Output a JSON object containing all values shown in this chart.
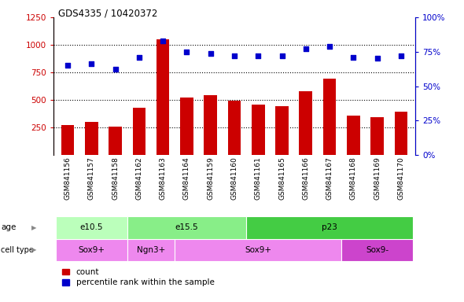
{
  "title": "GDS4335 / 10420372",
  "samples": [
    "GSM841156",
    "GSM841157",
    "GSM841158",
    "GSM841162",
    "GSM841163",
    "GSM841164",
    "GSM841159",
    "GSM841160",
    "GSM841161",
    "GSM841165",
    "GSM841166",
    "GSM841167",
    "GSM841168",
    "GSM841169",
    "GSM841170"
  ],
  "counts": [
    275,
    300,
    255,
    430,
    1050,
    520,
    540,
    495,
    455,
    445,
    580,
    690,
    360,
    340,
    390
  ],
  "percentile": [
    65,
    66,
    62,
    71,
    83,
    75,
    74,
    72,
    72,
    72,
    77,
    79,
    71,
    70,
    72
  ],
  "ylim_left": [
    0,
    1250
  ],
  "ylim_right": [
    0,
    100
  ],
  "yticks_left": [
    250,
    500,
    750,
    1000,
    1250
  ],
  "bar_color": "#cc0000",
  "dot_color": "#0000cc",
  "age_groups": [
    {
      "label": "e10.5",
      "start": 0,
      "end": 3,
      "color": "#bbffbb"
    },
    {
      "label": "e15.5",
      "start": 3,
      "end": 8,
      "color": "#88ee88"
    },
    {
      "label": "p23",
      "start": 8,
      "end": 15,
      "color": "#44cc44"
    }
  ],
  "cell_groups": [
    {
      "label": "Sox9+",
      "start": 0,
      "end": 3,
      "color": "#ee88ee"
    },
    {
      "label": "Ngn3+",
      "start": 3,
      "end": 5,
      "color": "#ee88ee"
    },
    {
      "label": "Sox9+",
      "start": 5,
      "end": 12,
      "color": "#ee88ee"
    },
    {
      "label": "Sox9-",
      "start": 12,
      "end": 15,
      "color": "#cc44cc"
    }
  ],
  "legend_red_label": "count",
  "legend_blue_label": "percentile rank within the sample",
  "dotted_line_values": [
    250,
    500,
    750,
    1000
  ],
  "fig_width": 5.9,
  "fig_height": 3.84,
  "dpi": 100
}
